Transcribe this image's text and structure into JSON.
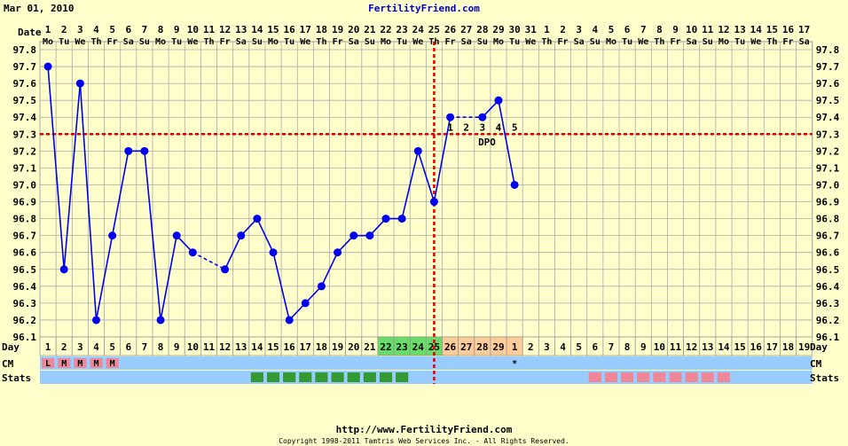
{
  "header": {
    "date": "Mar 01, 2010",
    "site": "FertilityFriend.com"
  },
  "footer": {
    "url": "http://www.FertilityFriend.com",
    "copyright": "Copyright 1998-2011 Tamtris Web Services Inc. - All Rights Reserved."
  },
  "labels": {
    "date": "Date",
    "day": "Day",
    "cm": "CM",
    "stats": "Stats",
    "dpo": "DPO"
  },
  "colors": {
    "background": "#ffffcc",
    "line": "#0000ee",
    "coverline": "#dd0000",
    "row_blue": "#99ccff",
    "fertile_green": "#66dd66",
    "luteal_orange": "#ffcc99",
    "stats_green": "#339933",
    "stats_pink": "#ee8899",
    "menses_pink": "#ee8899"
  },
  "chart_data": {
    "type": "line",
    "title": "",
    "ylim": [
      96.1,
      97.8
    ],
    "yticks": [
      "96.1",
      "96.2",
      "96.3",
      "96.4",
      "96.5",
      "96.6",
      "96.7",
      "96.8",
      "96.9",
      "97.0",
      "97.1",
      "97.2",
      "97.3",
      "97.4",
      "97.5",
      "97.6",
      "97.7",
      "97.8"
    ],
    "dates": [
      "1",
      "2",
      "3",
      "4",
      "5",
      "6",
      "7",
      "8",
      "9",
      "10",
      "11",
      "12",
      "13",
      "14",
      "15",
      "16",
      "17",
      "18",
      "19",
      "20",
      "21",
      "22",
      "23",
      "24",
      "25",
      "26",
      "27",
      "28",
      "29",
      "30",
      "31",
      "1",
      "2",
      "3",
      "4",
      "5",
      "6",
      "7",
      "8",
      "9",
      "10",
      "11",
      "12",
      "13",
      "14",
      "15",
      "16",
      "17"
    ],
    "weekdays": [
      "Mo",
      "Tu",
      "We",
      "Th",
      "Fr",
      "Sa",
      "Su",
      "Mo",
      "Tu",
      "We",
      "Th",
      "Fr",
      "Sa",
      "Su",
      "Mo",
      "Tu",
      "We",
      "Th",
      "Fr",
      "Sa",
      "Su",
      "Mo",
      "Tu",
      "We",
      "Th",
      "Fr",
      "Sa",
      "Su",
      "Mo",
      "Tu",
      "We",
      "Th",
      "Fr",
      "Sa",
      "Su",
      "Mo",
      "Tu",
      "We",
      "Th",
      "Fr",
      "Sa",
      "Su",
      "Mo",
      "Tu",
      "We",
      "Th",
      "Fr",
      "Sa"
    ],
    "cycle_days": [
      "1",
      "2",
      "3",
      "4",
      "5",
      "6",
      "7",
      "8",
      "9",
      "10",
      "11",
      "12",
      "13",
      "14",
      "15",
      "16",
      "17",
      "18",
      "19",
      "20",
      "21",
      "22",
      "23",
      "24",
      "25",
      "26",
      "27",
      "28",
      "29",
      "1",
      "2",
      "3",
      "4",
      "5",
      "6",
      "7",
      "8",
      "9",
      "10",
      "11",
      "12",
      "13",
      "14",
      "15",
      "16",
      "17",
      "18",
      "19"
    ],
    "temperatures": [
      97.7,
      96.5,
      97.6,
      96.2,
      96.7,
      97.2,
      97.2,
      96.2,
      96.7,
      96.6,
      null,
      96.5,
      96.7,
      96.8,
      96.6,
      96.2,
      96.3,
      96.4,
      96.6,
      96.7,
      96.7,
      96.8,
      96.8,
      97.2,
      96.9,
      97.4,
      null,
      97.4,
      97.5,
      97.0
    ],
    "coverline": 97.3,
    "ovulation_day_index": 24,
    "dpo_labels": [
      "1",
      "2",
      "3",
      "4",
      "5"
    ],
    "dpo_start_index": 25,
    "cm_row": [
      "L",
      "M",
      "M",
      "M",
      "M",
      "",
      "",
      "",
      "",
      "",
      "",
      "",
      "",
      "",
      "",
      "",
      "",
      "",
      "",
      "",
      "",
      "",
      "",
      "",
      "",
      "",
      "",
      "",
      "",
      "*",
      "",
      "",
      "",
      "",
      "",
      "",
      "",
      "",
      "",
      "",
      "",
      "",
      "",
      "",
      "",
      "",
      "",
      ""
    ],
    "fertile_days": [
      21,
      22,
      23,
      24
    ],
    "luteal_days": [
      25,
      26,
      27,
      28,
      29
    ],
    "stats_green_days": [
      13,
      14,
      15,
      16,
      17,
      18,
      19,
      20,
      21,
      22
    ],
    "stats_pink_days": [
      34,
      35,
      36,
      37,
      38,
      39,
      40,
      41,
      42
    ]
  }
}
